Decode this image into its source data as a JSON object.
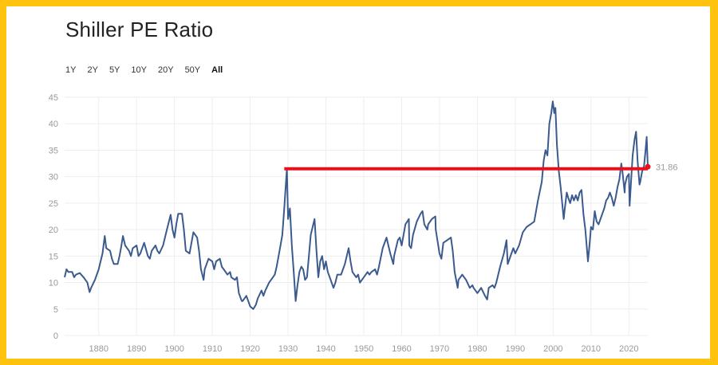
{
  "title": "Shiller PE Ratio",
  "ranges": [
    {
      "label": "1Y",
      "active": false
    },
    {
      "label": "2Y",
      "active": false
    },
    {
      "label": "5Y",
      "active": false
    },
    {
      "label": "10Y",
      "active": false
    },
    {
      "label": "20Y",
      "active": false
    },
    {
      "label": "50Y",
      "active": false
    },
    {
      "label": "All",
      "active": true
    }
  ],
  "colors": {
    "line": "#3B5A8E",
    "reference": "#E8111B",
    "border": "#FFC20E",
    "grid": "#EEEEEE",
    "ticks": "#999999"
  },
  "chart_data": {
    "type": "line",
    "title": "Shiller PE Ratio",
    "xlabel": "",
    "ylabel": "",
    "xlim": [
      1871,
      2025
    ],
    "ylim": [
      0,
      45
    ],
    "yticks": [
      0,
      5,
      10,
      15,
      20,
      25,
      30,
      35,
      40,
      45
    ],
    "xticks": [
      1880,
      1890,
      1900,
      1910,
      1920,
      1930,
      1940,
      1950,
      1960,
      1970,
      1980,
      1990,
      2000,
      2010,
      2020
    ],
    "grid": true,
    "current_value_label": "31.86",
    "reference_line": {
      "value": 31.5,
      "from": 1929,
      "to": 2025
    },
    "series": [
      {
        "name": "Shiller PE",
        "points": [
          [
            1871,
            11
          ],
          [
            1871.5,
            12.5
          ],
          [
            1872,
            12
          ],
          [
            1873,
            12
          ],
          [
            1873.5,
            11
          ],
          [
            1874,
            11.5
          ],
          [
            1875,
            11.8
          ],
          [
            1876,
            11
          ],
          [
            1876.5,
            10.5
          ],
          [
            1877,
            10
          ],
          [
            1877.6,
            8.2
          ],
          [
            1878,
            9
          ],
          [
            1879,
            10.5
          ],
          [
            1880,
            12.5
          ],
          [
            1880.5,
            14
          ],
          [
            1881,
            15.5
          ],
          [
            1881.6,
            18.8
          ],
          [
            1882,
            16.5
          ],
          [
            1883,
            16
          ],
          [
            1883.5,
            14.5
          ],
          [
            1884,
            13.5
          ],
          [
            1885,
            13.5
          ],
          [
            1885.5,
            15
          ],
          [
            1886,
            17
          ],
          [
            1886.4,
            18.8
          ],
          [
            1887,
            17
          ],
          [
            1888,
            16
          ],
          [
            1888.5,
            15
          ],
          [
            1889,
            16.5
          ],
          [
            1890,
            17
          ],
          [
            1890.5,
            15
          ],
          [
            1891,
            15.5
          ],
          [
            1892,
            17.5
          ],
          [
            1893,
            15
          ],
          [
            1893.5,
            14.5
          ],
          [
            1894,
            16
          ],
          [
            1895,
            17
          ],
          [
            1895.5,
            16
          ],
          [
            1896,
            15.5
          ],
          [
            1897,
            17
          ],
          [
            1898,
            20
          ],
          [
            1899,
            22.8
          ],
          [
            1899.5,
            20
          ],
          [
            1900,
            18.5
          ],
          [
            1900.5,
            21
          ],
          [
            1901,
            23
          ],
          [
            1902,
            23
          ],
          [
            1902.5,
            20
          ],
          [
            1903,
            16
          ],
          [
            1904,
            15.5
          ],
          [
            1905,
            19.5
          ],
          [
            1906,
            18.5
          ],
          [
            1906.5,
            16
          ],
          [
            1907,
            12.5
          ],
          [
            1907.7,
            10.5
          ],
          [
            1908,
            12.5
          ],
          [
            1909,
            14.5
          ],
          [
            1910,
            14
          ],
          [
            1910.5,
            12.5
          ],
          [
            1911,
            14
          ],
          [
            1912,
            14.5
          ],
          [
            1912.5,
            13
          ],
          [
            1913,
            12.5
          ],
          [
            1914,
            11.5
          ],
          [
            1914.7,
            12
          ],
          [
            1915,
            11
          ],
          [
            1916,
            10.5
          ],
          [
            1916.5,
            11
          ],
          [
            1917,
            8
          ],
          [
            1917.8,
            6.5
          ],
          [
            1918,
            6.5
          ],
          [
            1919,
            7.5
          ],
          [
            1919.5,
            6.5
          ],
          [
            1920,
            5.5
          ],
          [
            1920.8,
            5
          ],
          [
            1921,
            5.2
          ],
          [
            1921.5,
            5.8
          ],
          [
            1922,
            7
          ],
          [
            1923,
            8.5
          ],
          [
            1923.5,
            7.5
          ],
          [
            1924,
            8.5
          ],
          [
            1925,
            10
          ],
          [
            1926,
            11
          ],
          [
            1926.5,
            11.5
          ],
          [
            1927,
            13
          ],
          [
            1928,
            17
          ],
          [
            1928.5,
            19
          ],
          [
            1929,
            24
          ],
          [
            1929.7,
            31.5
          ],
          [
            1930,
            22
          ],
          [
            1930.5,
            24
          ],
          [
            1931,
            17
          ],
          [
            1931.5,
            12
          ],
          [
            1932,
            6.5
          ],
          [
            1932.5,
            9.5
          ],
          [
            1933,
            12
          ],
          [
            1933.5,
            13
          ],
          [
            1934,
            12.5
          ],
          [
            1934.5,
            10.5
          ],
          [
            1935,
            11
          ],
          [
            1935.5,
            15
          ],
          [
            1936,
            19
          ],
          [
            1937,
            22
          ],
          [
            1937.5,
            16
          ],
          [
            1938,
            11
          ],
          [
            1938.5,
            14
          ],
          [
            1939,
            15
          ],
          [
            1939.5,
            12.5
          ],
          [
            1940,
            14
          ],
          [
            1940.5,
            12
          ],
          [
            1941,
            11
          ],
          [
            1942,
            9
          ],
          [
            1942.5,
            10
          ],
          [
            1943,
            11.5
          ],
          [
            1944,
            11.5
          ],
          [
            1945,
            13.5
          ],
          [
            1946,
            16.5
          ],
          [
            1946.5,
            14
          ],
          [
            1947,
            12
          ],
          [
            1948,
            11
          ],
          [
            1948.5,
            11.5
          ],
          [
            1949,
            10
          ],
          [
            1950,
            11
          ],
          [
            1951,
            12
          ],
          [
            1951.5,
            11.5
          ],
          [
            1952,
            12
          ],
          [
            1953,
            12.5
          ],
          [
            1953.5,
            11.5
          ],
          [
            1954,
            13
          ],
          [
            1955,
            16.5
          ],
          [
            1956,
            18.5
          ],
          [
            1956.5,
            17
          ],
          [
            1957,
            15.5
          ],
          [
            1957.8,
            13.5
          ],
          [
            1958,
            15
          ],
          [
            1959,
            18
          ],
          [
            1959.5,
            18.5
          ],
          [
            1960,
            17
          ],
          [
            1961,
            21
          ],
          [
            1961.9,
            22
          ],
          [
            1962,
            17
          ],
          [
            1962.5,
            16.5
          ],
          [
            1963,
            19
          ],
          [
            1964,
            21.5
          ],
          [
            1965,
            23
          ],
          [
            1965.5,
            23.5
          ],
          [
            1966,
            21
          ],
          [
            1966.8,
            20
          ],
          [
            1967,
            21
          ],
          [
            1968,
            22
          ],
          [
            1968.9,
            22.5
          ],
          [
            1969,
            20
          ],
          [
            1970,
            15.5
          ],
          [
            1970.5,
            14.5
          ],
          [
            1971,
            17.5
          ],
          [
            1972,
            18
          ],
          [
            1973,
            18.5
          ],
          [
            1973.5,
            16
          ],
          [
            1974,
            12
          ],
          [
            1974.8,
            9
          ],
          [
            1975,
            10.5
          ],
          [
            1976,
            11.5
          ],
          [
            1977,
            10.5
          ],
          [
            1978,
            9
          ],
          [
            1978.7,
            9.5
          ],
          [
            1979,
            9
          ],
          [
            1980,
            8
          ],
          [
            1980.5,
            8.5
          ],
          [
            1981,
            9
          ],
          [
            1982,
            7.5
          ],
          [
            1982.6,
            6.8
          ],
          [
            1983,
            9
          ],
          [
            1984,
            9.5
          ],
          [
            1984.5,
            9
          ],
          [
            1985,
            10
          ],
          [
            1986,
            13
          ],
          [
            1987,
            15.5
          ],
          [
            1987.7,
            18
          ],
          [
            1988,
            13.5
          ],
          [
            1989,
            15.5
          ],
          [
            1989.5,
            16.5
          ],
          [
            1990,
            15.5
          ],
          [
            1991,
            17
          ],
          [
            1992,
            19.5
          ],
          [
            1993,
            20.5
          ],
          [
            1994,
            21
          ],
          [
            1995,
            21.5
          ],
          [
            1996,
            25.5
          ],
          [
            1997,
            29
          ],
          [
            1997.5,
            33
          ],
          [
            1998,
            35
          ],
          [
            1998.5,
            34
          ],
          [
            1999,
            40
          ],
          [
            1999.5,
            42
          ],
          [
            1999.9,
            44.2
          ],
          [
            2000.3,
            42
          ],
          [
            2000.6,
            43
          ],
          [
            2001,
            36
          ],
          [
            2001.5,
            31
          ],
          [
            2002,
            28
          ],
          [
            2002.8,
            22
          ],
          [
            2003,
            23.5
          ],
          [
            2003.6,
            27
          ],
          [
            2004,
            26
          ],
          [
            2004.5,
            25
          ],
          [
            2005,
            26.5
          ],
          [
            2005.5,
            25.5
          ],
          [
            2006,
            26.5
          ],
          [
            2006.5,
            25.5
          ],
          [
            2007,
            27
          ],
          [
            2007.5,
            27.5
          ],
          [
            2008,
            23
          ],
          [
            2008.5,
            20
          ],
          [
            2009.2,
            14
          ],
          [
            2009.6,
            17
          ],
          [
            2010,
            20.5
          ],
          [
            2010.5,
            20
          ],
          [
            2011,
            23.5
          ],
          [
            2011.5,
            21.5
          ],
          [
            2012,
            21
          ],
          [
            2012.5,
            22
          ],
          [
            2013,
            23
          ],
          [
            2013.5,
            24
          ],
          [
            2014,
            25.5
          ],
          [
            2014.5,
            26
          ],
          [
            2015,
            27
          ],
          [
            2015.5,
            26
          ],
          [
            2016,
            24.5
          ],
          [
            2016.5,
            26
          ],
          [
            2017,
            28
          ],
          [
            2017.5,
            29.5
          ],
          [
            2018,
            32.5
          ],
          [
            2018.3,
            31
          ],
          [
            2018.9,
            27
          ],
          [
            2019,
            28.5
          ],
          [
            2019.5,
            30
          ],
          [
            2020,
            30.5
          ],
          [
            2020.2,
            24.5
          ],
          [
            2020.5,
            28
          ],
          [
            2021,
            34
          ],
          [
            2021.5,
            37
          ],
          [
            2021.9,
            38.5
          ],
          [
            2022.3,
            33
          ],
          [
            2022.8,
            28.5
          ],
          [
            2023,
            29
          ],
          [
            2023.5,
            31
          ],
          [
            2024,
            32
          ],
          [
            2024.4,
            35
          ],
          [
            2024.7,
            37.5
          ],
          [
            2025,
            31.86
          ]
        ]
      }
    ]
  }
}
